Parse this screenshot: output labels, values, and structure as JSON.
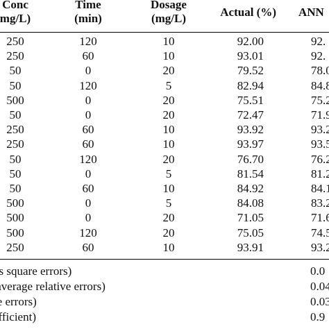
{
  "table": {
    "headers": {
      "conc": [
        "Conc",
        "mg/L)"
      ],
      "time": [
        "Time",
        "(min)"
      ],
      "dosage": [
        "Dosage",
        "(mg/L)"
      ],
      "actual": "Actual (%)",
      "ann": "ANN"
    },
    "rows": [
      {
        "conc": "250",
        "time": "120",
        "dosage": "10",
        "actual": "92.00",
        "ann": "92."
      },
      {
        "conc": "250",
        "time": "60",
        "dosage": "10",
        "actual": "93.01",
        "ann": "92."
      },
      {
        "conc": "50",
        "time": "0",
        "dosage": "20",
        "actual": "79.52",
        "ann": "78.0"
      },
      {
        "conc": "50",
        "time": "120",
        "dosage": "5",
        "actual": "82.94",
        "ann": "84.8"
      },
      {
        "conc": "500",
        "time": "0",
        "dosage": "20",
        "actual": "75.51",
        "ann": "75.2"
      },
      {
        "conc": "50",
        "time": "0",
        "dosage": "20",
        "actual": "72.47",
        "ann": "71.9"
      },
      {
        "conc": "250",
        "time": "60",
        "dosage": "10",
        "actual": "93.92",
        "ann": "93.2"
      },
      {
        "conc": "250",
        "time": "60",
        "dosage": "10",
        "actual": "93.97",
        "ann": "93.5"
      },
      {
        "conc": "50",
        "time": "120",
        "dosage": "20",
        "actual": "76.70",
        "ann": "76.2"
      },
      {
        "conc": "50",
        "time": "0",
        "dosage": "5",
        "actual": "81.54",
        "ann": "81.2"
      },
      {
        "conc": "50",
        "time": "60",
        "dosage": "10",
        "actual": "84.92",
        "ann": "84.1"
      },
      {
        "conc": "500",
        "time": "0",
        "dosage": "5",
        "actual": "84.08",
        "ann": "83.2"
      },
      {
        "conc": "500",
        "time": "0",
        "dosage": "20",
        "actual": "71.05",
        "ann": "71.6"
      },
      {
        "conc": "500",
        "time": "120",
        "dosage": "20",
        "actual": "75.05",
        "ann": "74.5"
      },
      {
        "conc": "250",
        "time": "60",
        "dosage": "10",
        "actual": "93.91",
        "ann": "93.2"
      }
    ],
    "footer": [
      {
        "label": "ns square errors)",
        "value": "0.0"
      },
      {
        "label": " average relative errors)",
        "value": "0.04"
      },
      {
        "label": "re errors)",
        "value": "0.03"
      },
      {
        "label": "efficient)",
        "value": "0.9"
      }
    ]
  }
}
